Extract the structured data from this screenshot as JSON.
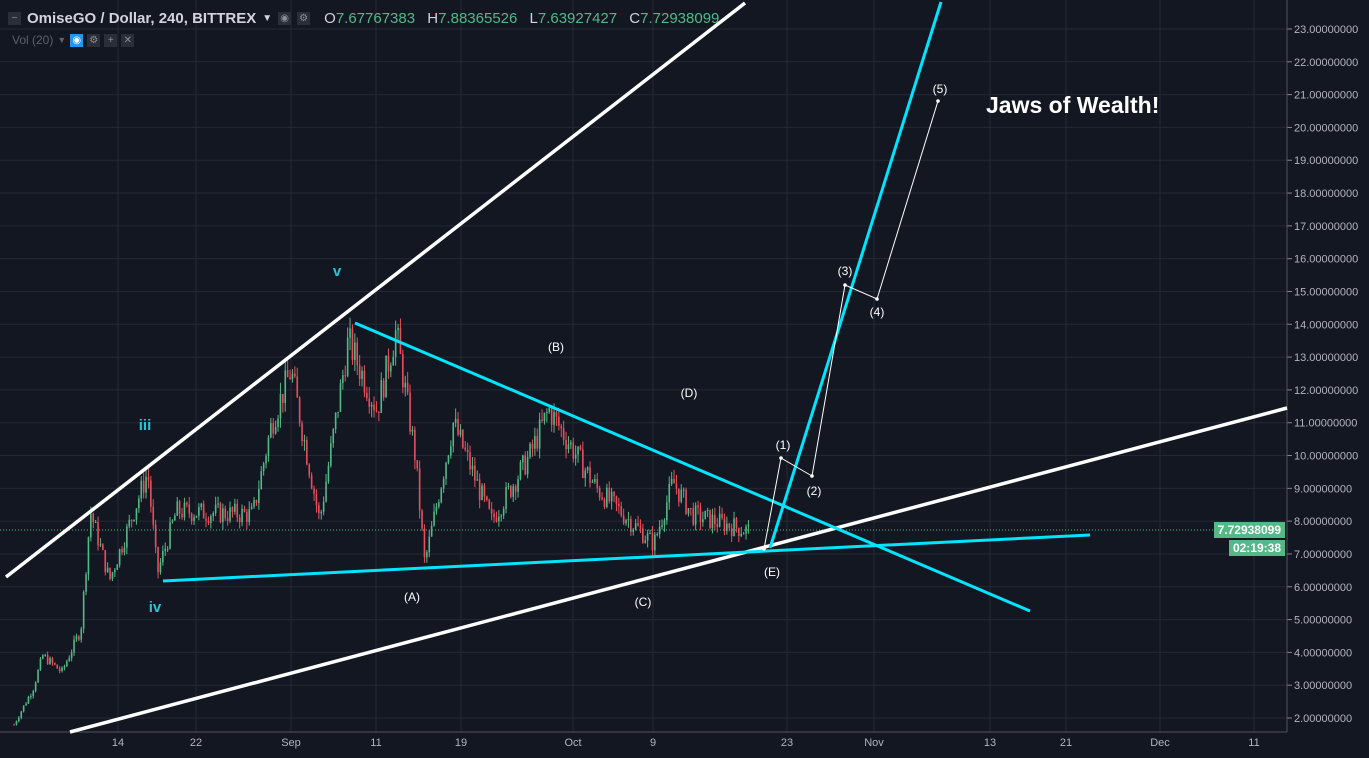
{
  "header": {
    "title": "OmiseGO / Dollar, 240, BITTREX",
    "open_label": "O",
    "open": "7.67767383",
    "high_label": "H",
    "high": "7.88365526",
    "low_label": "L",
    "low": "7.63927427",
    "close_label": "C",
    "close": "7.72938099"
  },
  "volume": {
    "label": "Vol (20)"
  },
  "price_tag": {
    "value": "7.72938099",
    "countdown": "02:19:38",
    "color": "#53b987"
  },
  "colors": {
    "background": "#131722",
    "up": "#53b987",
    "down": "#eb4d5c",
    "cyan_line": "#00e5ff",
    "white_line": "#ffffff"
  },
  "annotations": {
    "title": "Jaws of Wealth!",
    "wave_labels": [
      "iii",
      "iv",
      "v"
    ],
    "abc_labels": [
      "(A)",
      "(B)",
      "(C)",
      "(D)",
      "(E)"
    ],
    "impulse_labels": [
      "(1)",
      "(2)",
      "(3)",
      "(4)",
      "(5)"
    ]
  },
  "chart_data": {
    "type": "candlestick",
    "timeframe": "240",
    "yaxis_ticks": [
      "2.00000000",
      "3.00000000",
      "4.00000000",
      "5.00000000",
      "6.00000000",
      "7.00000000",
      "8.00000000",
      "9.00000000",
      "10.00000000",
      "11.00000000",
      "12.00000000",
      "13.00000000",
      "14.00000000",
      "15.00000000",
      "16.00000000",
      "17.00000000",
      "18.00000000",
      "19.00000000",
      "20.00000000",
      "21.00000000",
      "22.00000000",
      "23.00000000"
    ],
    "ylim": [
      1.3,
      23.7
    ],
    "xaxis_ticks": [
      "14",
      "22",
      "Sep",
      "11",
      "19",
      "Oct",
      "9",
      "23",
      "Nov",
      "13",
      "21",
      "Dec",
      "11"
    ],
    "price_path": [
      [
        "2017-08-03",
        1.8
      ],
      [
        "2017-08-05",
        2.9
      ],
      [
        "2017-08-06",
        3.9
      ],
      [
        "2017-08-08",
        3.4
      ],
      [
        "2017-08-10",
        4.7
      ],
      [
        "2017-08-11",
        8.3
      ],
      [
        "2017-08-13",
        6.2
      ],
      [
        "2017-08-17",
        9.5
      ],
      [
        "2017-08-18",
        6.4
      ],
      [
        "2017-08-20",
        8.3
      ],
      [
        "2017-08-28",
        8.2
      ],
      [
        "2017-08-30",
        11.0
      ],
      [
        "2017-09-01",
        12.6
      ],
      [
        "2017-09-04",
        8.0
      ],
      [
        "2017-09-07",
        13.5
      ],
      [
        "2017-09-10",
        11.4
      ],
      [
        "2017-09-12",
        13.8
      ],
      [
        "2017-09-14",
        10.0
      ],
      [
        "2017-09-15",
        6.7
      ],
      [
        "2017-09-18",
        11.0
      ],
      [
        "2017-09-22",
        8.0
      ],
      [
        "2017-09-26",
        10.0
      ],
      [
        "2017-09-28",
        11.4
      ],
      [
        "2017-10-03",
        9.0
      ],
      [
        "2017-10-09",
        7.3
      ],
      [
        "2017-10-11",
        9.2
      ],
      [
        "2017-10-13",
        8.2
      ],
      [
        "2017-10-19",
        7.7
      ]
    ]
  }
}
